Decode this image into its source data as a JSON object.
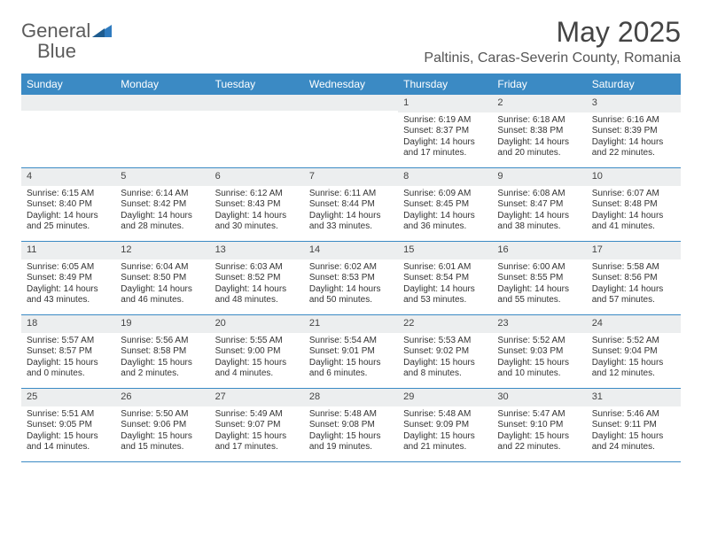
{
  "logo": {
    "word1": "General",
    "word2": "Blue"
  },
  "title": "May 2025",
  "location": "Paltinis, Caras-Severin County, Romania",
  "colors": {
    "header_bg": "#3b8ac4",
    "header_text": "#ffffff",
    "daynum_bg": "#eceeef",
    "border": "#3b8ac4",
    "text": "#333333",
    "title_text": "#444444",
    "logo_gray": "#5c5c5c",
    "logo_blue": "#2f7bbf"
  },
  "typography": {
    "title_fontsize": 32,
    "location_fontsize": 16,
    "dayheader_fontsize": 12,
    "daynum_fontsize": 11,
    "body_fontsize": 10
  },
  "day_names": [
    "Sunday",
    "Monday",
    "Tuesday",
    "Wednesday",
    "Thursday",
    "Friday",
    "Saturday"
  ],
  "weeks": [
    [
      {
        "empty": true
      },
      {
        "empty": true
      },
      {
        "empty": true
      },
      {
        "empty": true
      },
      {
        "day": "1",
        "sunrise": "Sunrise: 6:19 AM",
        "sunset": "Sunset: 8:37 PM",
        "daylight": "Daylight: 14 hours and 17 minutes."
      },
      {
        "day": "2",
        "sunrise": "Sunrise: 6:18 AM",
        "sunset": "Sunset: 8:38 PM",
        "daylight": "Daylight: 14 hours and 20 minutes."
      },
      {
        "day": "3",
        "sunrise": "Sunrise: 6:16 AM",
        "sunset": "Sunset: 8:39 PM",
        "daylight": "Daylight: 14 hours and 22 minutes."
      }
    ],
    [
      {
        "day": "4",
        "sunrise": "Sunrise: 6:15 AM",
        "sunset": "Sunset: 8:40 PM",
        "daylight": "Daylight: 14 hours and 25 minutes."
      },
      {
        "day": "5",
        "sunrise": "Sunrise: 6:14 AM",
        "sunset": "Sunset: 8:42 PM",
        "daylight": "Daylight: 14 hours and 28 minutes."
      },
      {
        "day": "6",
        "sunrise": "Sunrise: 6:12 AM",
        "sunset": "Sunset: 8:43 PM",
        "daylight": "Daylight: 14 hours and 30 minutes."
      },
      {
        "day": "7",
        "sunrise": "Sunrise: 6:11 AM",
        "sunset": "Sunset: 8:44 PM",
        "daylight": "Daylight: 14 hours and 33 minutes."
      },
      {
        "day": "8",
        "sunrise": "Sunrise: 6:09 AM",
        "sunset": "Sunset: 8:45 PM",
        "daylight": "Daylight: 14 hours and 36 minutes."
      },
      {
        "day": "9",
        "sunrise": "Sunrise: 6:08 AM",
        "sunset": "Sunset: 8:47 PM",
        "daylight": "Daylight: 14 hours and 38 minutes."
      },
      {
        "day": "10",
        "sunrise": "Sunrise: 6:07 AM",
        "sunset": "Sunset: 8:48 PM",
        "daylight": "Daylight: 14 hours and 41 minutes."
      }
    ],
    [
      {
        "day": "11",
        "sunrise": "Sunrise: 6:05 AM",
        "sunset": "Sunset: 8:49 PM",
        "daylight": "Daylight: 14 hours and 43 minutes."
      },
      {
        "day": "12",
        "sunrise": "Sunrise: 6:04 AM",
        "sunset": "Sunset: 8:50 PM",
        "daylight": "Daylight: 14 hours and 46 minutes."
      },
      {
        "day": "13",
        "sunrise": "Sunrise: 6:03 AM",
        "sunset": "Sunset: 8:52 PM",
        "daylight": "Daylight: 14 hours and 48 minutes."
      },
      {
        "day": "14",
        "sunrise": "Sunrise: 6:02 AM",
        "sunset": "Sunset: 8:53 PM",
        "daylight": "Daylight: 14 hours and 50 minutes."
      },
      {
        "day": "15",
        "sunrise": "Sunrise: 6:01 AM",
        "sunset": "Sunset: 8:54 PM",
        "daylight": "Daylight: 14 hours and 53 minutes."
      },
      {
        "day": "16",
        "sunrise": "Sunrise: 6:00 AM",
        "sunset": "Sunset: 8:55 PM",
        "daylight": "Daylight: 14 hours and 55 minutes."
      },
      {
        "day": "17",
        "sunrise": "Sunrise: 5:58 AM",
        "sunset": "Sunset: 8:56 PM",
        "daylight": "Daylight: 14 hours and 57 minutes."
      }
    ],
    [
      {
        "day": "18",
        "sunrise": "Sunrise: 5:57 AM",
        "sunset": "Sunset: 8:57 PM",
        "daylight": "Daylight: 15 hours and 0 minutes."
      },
      {
        "day": "19",
        "sunrise": "Sunrise: 5:56 AM",
        "sunset": "Sunset: 8:58 PM",
        "daylight": "Daylight: 15 hours and 2 minutes."
      },
      {
        "day": "20",
        "sunrise": "Sunrise: 5:55 AM",
        "sunset": "Sunset: 9:00 PM",
        "daylight": "Daylight: 15 hours and 4 minutes."
      },
      {
        "day": "21",
        "sunrise": "Sunrise: 5:54 AM",
        "sunset": "Sunset: 9:01 PM",
        "daylight": "Daylight: 15 hours and 6 minutes."
      },
      {
        "day": "22",
        "sunrise": "Sunrise: 5:53 AM",
        "sunset": "Sunset: 9:02 PM",
        "daylight": "Daylight: 15 hours and 8 minutes."
      },
      {
        "day": "23",
        "sunrise": "Sunrise: 5:52 AM",
        "sunset": "Sunset: 9:03 PM",
        "daylight": "Daylight: 15 hours and 10 minutes."
      },
      {
        "day": "24",
        "sunrise": "Sunrise: 5:52 AM",
        "sunset": "Sunset: 9:04 PM",
        "daylight": "Daylight: 15 hours and 12 minutes."
      }
    ],
    [
      {
        "day": "25",
        "sunrise": "Sunrise: 5:51 AM",
        "sunset": "Sunset: 9:05 PM",
        "daylight": "Daylight: 15 hours and 14 minutes."
      },
      {
        "day": "26",
        "sunrise": "Sunrise: 5:50 AM",
        "sunset": "Sunset: 9:06 PM",
        "daylight": "Daylight: 15 hours and 15 minutes."
      },
      {
        "day": "27",
        "sunrise": "Sunrise: 5:49 AM",
        "sunset": "Sunset: 9:07 PM",
        "daylight": "Daylight: 15 hours and 17 minutes."
      },
      {
        "day": "28",
        "sunrise": "Sunrise: 5:48 AM",
        "sunset": "Sunset: 9:08 PM",
        "daylight": "Daylight: 15 hours and 19 minutes."
      },
      {
        "day": "29",
        "sunrise": "Sunrise: 5:48 AM",
        "sunset": "Sunset: 9:09 PM",
        "daylight": "Daylight: 15 hours and 21 minutes."
      },
      {
        "day": "30",
        "sunrise": "Sunrise: 5:47 AM",
        "sunset": "Sunset: 9:10 PM",
        "daylight": "Daylight: 15 hours and 22 minutes."
      },
      {
        "day": "31",
        "sunrise": "Sunrise: 5:46 AM",
        "sunset": "Sunset: 9:11 PM",
        "daylight": "Daylight: 15 hours and 24 minutes."
      }
    ]
  ]
}
